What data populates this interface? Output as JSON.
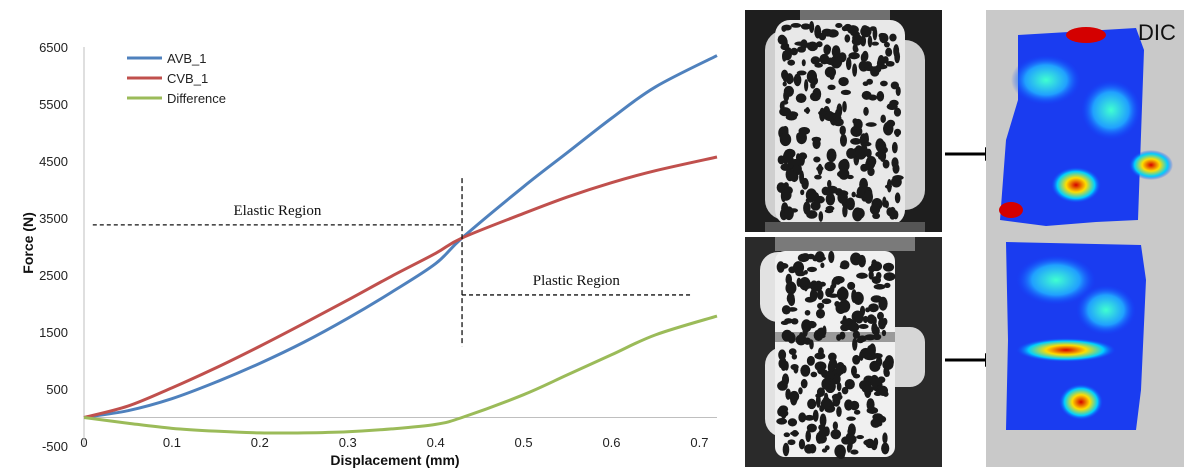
{
  "chart_data": {
    "type": "line",
    "xlabel": "Displacement (mm)",
    "ylabel": "Force (N)",
    "xlim": [
      0,
      0.72
    ],
    "ylim": [
      -500,
      6500
    ],
    "x_ticks": [
      "0",
      "0.1",
      "0.2",
      "0.3",
      "0.4",
      "0.5",
      "0.6",
      "0.7"
    ],
    "y_ticks": [
      "6500",
      "5500",
      "4500",
      "3500",
      "2500",
      "1500",
      "500",
      "-500"
    ],
    "legend_position": "top-left",
    "grid": false,
    "series": [
      {
        "name": "AVB_1",
        "color": "#4f81bd",
        "x": [
          0,
          0.05,
          0.1,
          0.15,
          0.2,
          0.25,
          0.3,
          0.35,
          0.4,
          0.43,
          0.5,
          0.55,
          0.6,
          0.65,
          0.72
        ],
        "y": [
          0,
          120,
          330,
          620,
          950,
          1320,
          1740,
          2200,
          2700,
          3150,
          4050,
          4650,
          5250,
          5800,
          6350
        ]
      },
      {
        "name": "CVB_1",
        "color": "#c0504d",
        "x": [
          0,
          0.05,
          0.1,
          0.15,
          0.2,
          0.25,
          0.3,
          0.35,
          0.4,
          0.43,
          0.5,
          0.55,
          0.6,
          0.65,
          0.72
        ],
        "y": [
          0,
          200,
          520,
          870,
          1250,
          1650,
          2060,
          2480,
          2880,
          3150,
          3580,
          3870,
          4120,
          4330,
          4570
        ]
      },
      {
        "name": "Difference",
        "color": "#9bbb59",
        "x": [
          0,
          0.05,
          0.1,
          0.15,
          0.2,
          0.25,
          0.3,
          0.35,
          0.4,
          0.43,
          0.5,
          0.55,
          0.6,
          0.65,
          0.72
        ],
        "y": [
          0,
          -100,
          -190,
          -240,
          -270,
          -270,
          -250,
          -200,
          -120,
          0,
          400,
          750,
          1100,
          1450,
          1780
        ]
      }
    ],
    "annotations": {
      "elastic": {
        "text": "Elastic Region",
        "y": 3380,
        "x_from": 0.01,
        "x_to": 0.43
      },
      "plastic": {
        "text": "Plastic Region",
        "y": 2150,
        "x_from": 0.43,
        "x_to": 0.69
      },
      "divider": {
        "x": 0.43,
        "y_from": 1250,
        "y_to": 4200
      }
    }
  },
  "dic": {
    "label": "DIC"
  }
}
